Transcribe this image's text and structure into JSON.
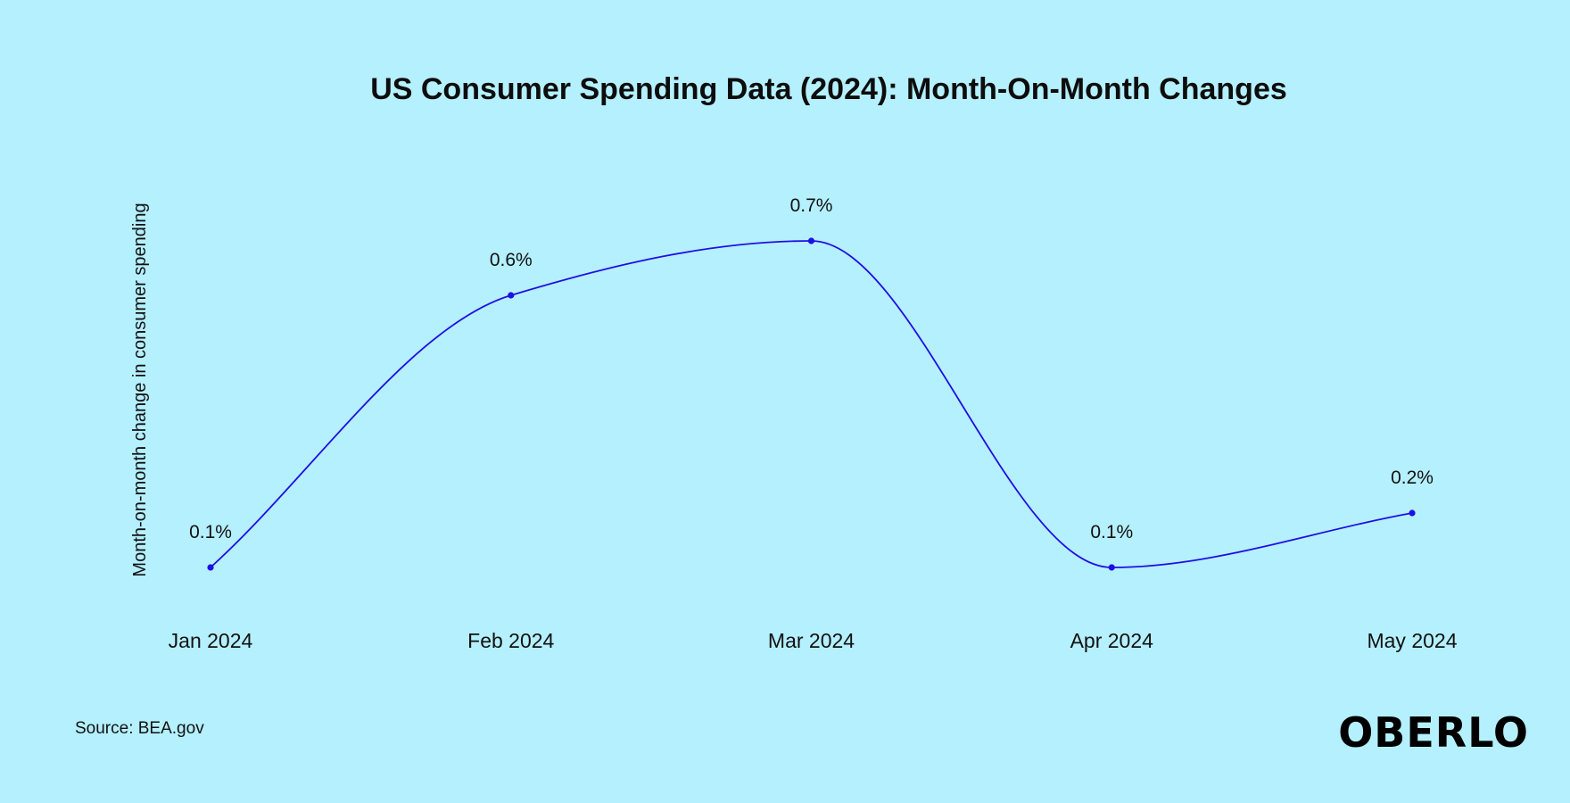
{
  "source": "Source: BEA.gov",
  "brand": "OBERLO",
  "colors": {
    "background": "#b5f0ff",
    "line": "#1f0fe6",
    "text": "#111111"
  },
  "chart_data": {
    "type": "line",
    "title": "US Consumer Spending Data (2024): Month-On-Month Changes",
    "xlabel": "",
    "ylabel": "Month-on-month change in consumer spending",
    "categories": [
      "Jan 2024",
      "Feb 2024",
      "Mar 2024",
      "Apr 2024",
      "May 2024"
    ],
    "series": [
      {
        "values": [
          0.1,
          0.6,
          0.7,
          0.1,
          0.2
        ],
        "data_labels": [
          "0.1%",
          "0.6%",
          "0.7%",
          "0.1%",
          "0.2%"
        ]
      }
    ],
    "ylim": [
      0.1,
      0.7
    ],
    "grid": false,
    "smooth": true,
    "markers": true
  }
}
